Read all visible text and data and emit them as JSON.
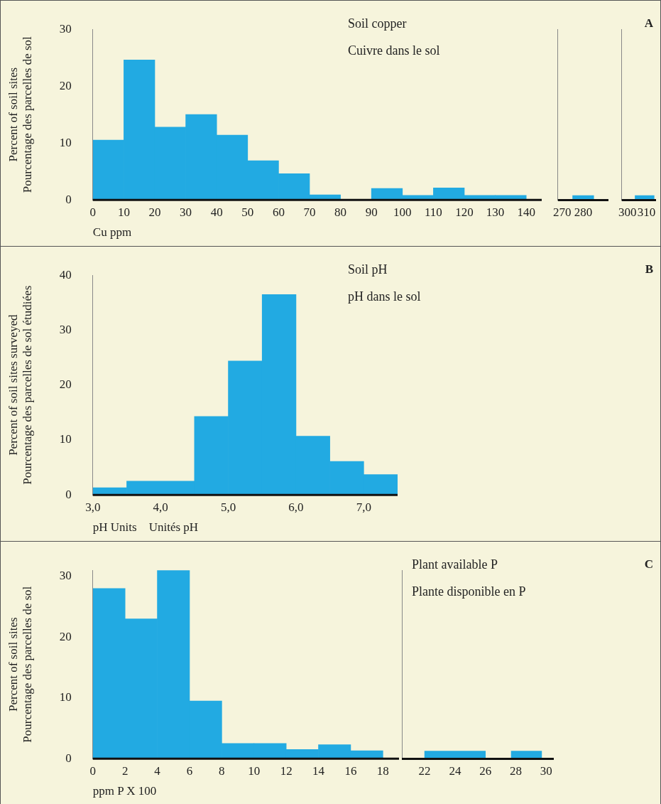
{
  "chart_data": [
    {
      "type": "histogram",
      "title": "Soil copper",
      "subtitle": "Cuivre dans le sol",
      "xlabel": "Cu ppm",
      "ylabel": "Percent of soil sites\nPourcentage des parcelles de sol",
      "color": "#22aae2",
      "bins": [
        0,
        10,
        20,
        30,
        40,
        50,
        60,
        70,
        80,
        90,
        100,
        110,
        120,
        130,
        140
      ],
      "values": [
        10.5,
        24.6,
        12.8,
        15,
        11.4,
        6.9,
        4.6,
        0.9,
        0,
        2,
        0.8,
        2.1,
        0.8,
        0.8
      ],
      "xlim": [
        0,
        145
      ],
      "xticks": [
        0,
        10,
        20,
        30,
        40,
        50,
        60,
        70,
        80,
        90,
        100,
        110,
        120,
        130,
        140
      ],
      "ylim": [
        0,
        30
      ],
      "yticks": [
        0,
        10,
        20,
        30
      ],
      "grid": false,
      "legend": false
    },
    {
      "type": "histogram",
      "color": "#22aae2",
      "bins": [
        275,
        285
      ],
      "values": [
        0.8
      ],
      "xlim": [
        268,
        292
      ],
      "xticks": [
        270,
        280
      ],
      "ylim": [
        0,
        30
      ],
      "tick_labels": "x",
      "grid": false,
      "legend": false
    },
    {
      "type": "histogram",
      "annotations": [
        "A"
      ],
      "color": "#22aae2",
      "bins": [
        304,
        314
      ],
      "values": [
        0.8
      ],
      "xlim": [
        297,
        315
      ],
      "xticks": [
        300,
        310
      ],
      "ylim": [
        0,
        30
      ],
      "tick_labels": "x",
      "grid": false,
      "legend": false
    },
    {
      "type": "histogram",
      "title": "Soil pH",
      "subtitle": "pH dans le sol",
      "annotations": [
        "B"
      ],
      "xlabel": "pH Units    Unités pH",
      "ylabel": "Percent of soil sites surveyed\nPourcentage des parcelles de sol étudiées",
      "color": "#22aae2",
      "bins": [
        3,
        3.5,
        4.5,
        5,
        5.5,
        6,
        6.5,
        7,
        7.5
      ],
      "values": [
        1.3,
        2.5,
        14.3,
        24.4,
        36.5,
        10.7,
        6.1,
        3.7
      ],
      "xlim": [
        3,
        7.5
      ],
      "xticks": [
        {
          "value": 3,
          "label": "3,0"
        },
        {
          "value": 4,
          "label": "4,0"
        },
        {
          "value": 5,
          "label": "5,0"
        },
        {
          "value": 6,
          "label": "6,0"
        },
        {
          "value": 7,
          "label": "7,0"
        }
      ],
      "ylim": [
        0,
        40
      ],
      "yticks": [
        0,
        10,
        20,
        30,
        40
      ],
      "grid": false,
      "legend": false
    },
    {
      "type": "histogram",
      "xlabel": "ppm P X 100",
      "ylabel": "Percent of soil sites\nPourcentage des parcelles de sol",
      "color": "#22aae2",
      "bins": [
        0,
        2,
        4,
        6,
        8,
        10,
        12,
        14,
        16,
        18
      ],
      "values": [
        28,
        23,
        31,
        9.5,
        2.5,
        2.5,
        1.5,
        2.3,
        1.3
      ],
      "xlim": [
        0,
        19
      ],
      "xticks": [
        0,
        2,
        4,
        6,
        8,
        10,
        12,
        14,
        16,
        18
      ],
      "ylim": [
        0,
        31
      ],
      "yticks": [
        0,
        10,
        20,
        30
      ],
      "grid": false,
      "legend": false
    },
    {
      "type": "histogram",
      "title": "Plant available P",
      "subtitle": "Plante disponible en P",
      "annotations": [
        "C"
      ],
      "color": "#22aae2",
      "bins": [
        22,
        26,
        27.7,
        29.7
      ],
      "values": [
        1.3,
        0,
        1.3
      ],
      "xlim": [
        20.5,
        30.5
      ],
      "xticks": [
        22,
        24,
        26,
        28,
        30
      ],
      "ylim": [
        0,
        31
      ],
      "tick_labels": "x",
      "grid": false,
      "legend": false
    }
  ]
}
